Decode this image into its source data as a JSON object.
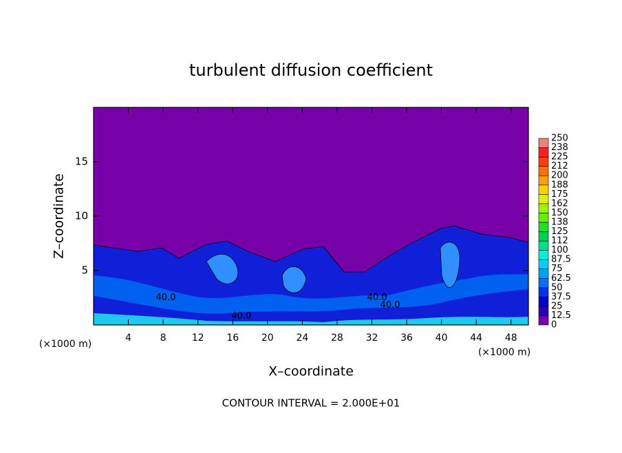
{
  "chart_data": {
    "type": "contour",
    "title": "turbulent diffusion coefficient",
    "x_label": "X–coordinate",
    "y_label": "Z–coordinate",
    "x_unit_left": "(×1000 m)",
    "x_unit_right": "(×1000 m)",
    "footer": "CONTOUR INTERVAL = 2.000E+01",
    "xlim": [
      0,
      50
    ],
    "xticks": [
      4,
      8,
      12,
      16,
      20,
      24,
      28,
      32,
      36,
      40,
      44,
      48
    ],
    "ylim": [
      0,
      20
    ],
    "yticks": [
      5,
      10,
      15
    ],
    "contour_labels": [
      {
        "text": "40.0",
        "x": 8.3,
        "z": 2.5
      },
      {
        "text": "40.0",
        "x": 17,
        "z": 0.8
      },
      {
        "text": "40.0",
        "x": 32.6,
        "z": 2.5
      },
      {
        "text": "40.0",
        "x": 34.1,
        "z": 1.8
      }
    ],
    "colorbar": {
      "levels": [
        0,
        12.5,
        25,
        37.5,
        50,
        62.5,
        75,
        87.5,
        100,
        112,
        125,
        138,
        150,
        162,
        175,
        188,
        200,
        212,
        225,
        238,
        250
      ],
      "colors": [
        "#7800a8",
        "#2a00b4",
        "#0000d2",
        "#0030f0",
        "#0070ff",
        "#00a0ff",
        "#00d0ff",
        "#00f0d8",
        "#00e090",
        "#00d050",
        "#20e020",
        "#60f000",
        "#a0f000",
        "#e0f000",
        "#ffd000",
        "#ffa000",
        "#ff7000",
        "#ff4000",
        "#ff2020",
        "#f08080"
      ]
    }
  }
}
